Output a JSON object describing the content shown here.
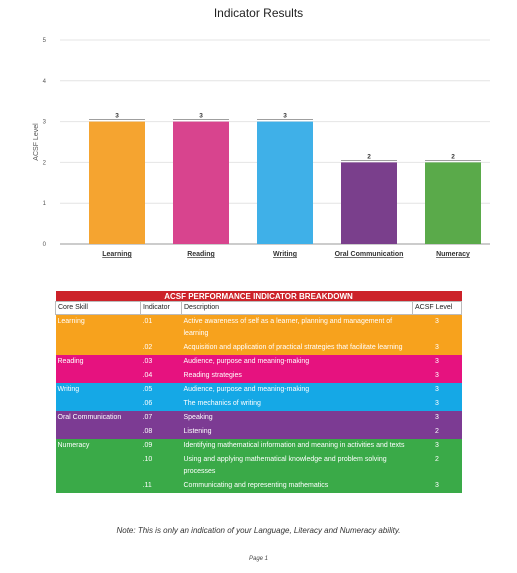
{
  "chart_data": {
    "type": "bar",
    "title": "Indicator Results",
    "ylabel": "ACSF Level",
    "xlabel": "",
    "ylim": [
      0,
      5
    ],
    "yticks": [
      0,
      1,
      2,
      3,
      4,
      5
    ],
    "categories": [
      "Learning",
      "Reading",
      "Writing",
      "Oral Communication",
      "Numeracy"
    ],
    "values": [
      3,
      3,
      3,
      2,
      2
    ],
    "data_labels": [
      "3",
      "3",
      "3",
      "2",
      "2"
    ],
    "colors": [
      "#f5a430",
      "#d8448e",
      "#3fb0e8",
      "#7a3f8c",
      "#5aaa4a"
    ],
    "grid": true
  },
  "table": {
    "title": "ACSF PERFORMANCE INDICATOR BREAKDOWN",
    "headers": [
      "Core Skill",
      "Indicator",
      "Description",
      "ACSF Level"
    ],
    "groups": [
      {
        "skill": "Learning",
        "color": "#f7a21d",
        "rows": [
          {
            "indicator": ".01",
            "description": "Active awareness of self as a learner, planning and management of learning",
            "level": "3"
          },
          {
            "indicator": ".02",
            "description": "Acquisition and application of practical strategies that facilitate learning",
            "level": "3"
          }
        ]
      },
      {
        "skill": "Reading",
        "color": "#e6127f",
        "rows": [
          {
            "indicator": ".03",
            "description": "Audience, purpose and meaning-making",
            "level": "3"
          },
          {
            "indicator": ".04",
            "description": "Reading strategies",
            "level": "3"
          }
        ]
      },
      {
        "skill": "Writing",
        "color": "#15a8e6",
        "rows": [
          {
            "indicator": ".05",
            "description": "Audience, purpose and meaning-making",
            "level": "3"
          },
          {
            "indicator": ".06",
            "description": "The mechanics of writing",
            "level": "3"
          }
        ]
      },
      {
        "skill": "Oral Communication",
        "color": "#7c3b93",
        "rows": [
          {
            "indicator": ".07",
            "description": "Speaking",
            "level": "3"
          },
          {
            "indicator": ".08",
            "description": "Listening",
            "level": "2"
          }
        ]
      },
      {
        "skill": "Numeracy",
        "color": "#3aaa48",
        "rows": [
          {
            "indicator": ".09",
            "description": "Identifying mathematical information and meaning in activities and texts",
            "level": "3"
          },
          {
            "indicator": ".10",
            "description": "Using and applying mathematical knowledge and problem solving processes",
            "level": "2"
          },
          {
            "indicator": ".11",
            "description": "Communicating and representing mathematics",
            "level": "3"
          }
        ]
      }
    ]
  },
  "note": "Note: This is only an indication of your Language, Literacy and Numeracy ability.",
  "page_label": "Page 1"
}
